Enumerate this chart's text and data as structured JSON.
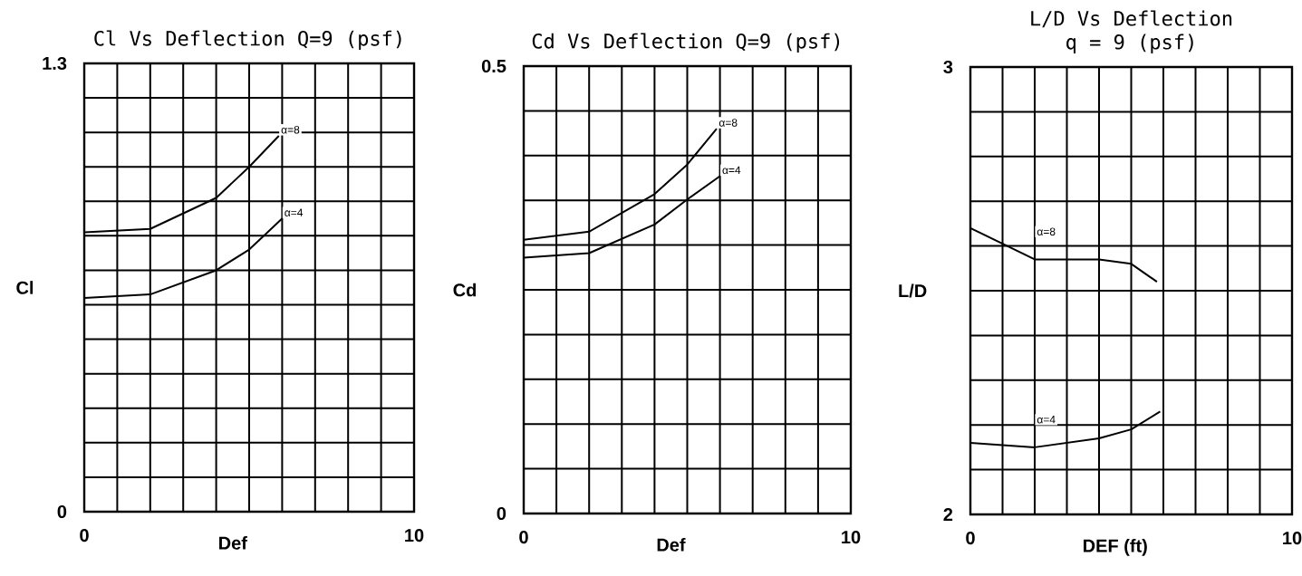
{
  "chart_data": [
    {
      "type": "line",
      "title": "Cl Vs Deflection Q=9 (psf)",
      "xlabel": "Def",
      "ylabel": "Cl",
      "x": [
        0,
        2,
        4,
        5,
        5.9
      ],
      "series": [
        {
          "name": "α=8",
          "color": "#000000",
          "values": [
            0.81,
            0.82,
            0.91,
            1.0,
            1.09
          ]
        },
        {
          "name": "α=4",
          "color": "#000000",
          "values": [
            0.62,
            0.63,
            0.7,
            0.76,
            0.85
          ],
          "x": [
            0,
            2,
            4,
            5,
            6
          ]
        }
      ],
      "xlim": [
        0,
        10
      ],
      "ylim": [
        0,
        1.3
      ],
      "xticks": [
        0,
        {
          "value": 1,
          "label": null
        },
        {
          "value": 2,
          "label": null
        },
        {
          "value": 3,
          "label": null
        },
        {
          "value": 4,
          "label": null
        },
        {
          "value": 5,
          "label": null
        },
        {
          "value": 6,
          "label": null
        },
        {
          "value": 7,
          "label": null
        },
        {
          "value": 8,
          "label": null
        },
        {
          "value": 9,
          "label": null
        },
        10
      ],
      "yticks": [
        0,
        {
          "value": 0.1,
          "label": null
        },
        {
          "value": 0.2,
          "label": null
        },
        {
          "value": 0.3,
          "label": null
        },
        {
          "value": 0.4,
          "label": null
        },
        {
          "value": 0.5,
          "label": null
        },
        {
          "value": 0.6,
          "label": null
        },
        {
          "value": 0.7,
          "label": null
        },
        {
          "value": 0.8,
          "label": null
        },
        {
          "value": 0.9,
          "label": null
        },
        {
          "value": 1.0,
          "label": null
        },
        {
          "value": 1.1,
          "label": null
        },
        {
          "value": 1.2,
          "label": null
        },
        1.3
      ],
      "grid": true,
      "marker": "none",
      "line_style": "solid",
      "legend": false
    },
    {
      "type": "line",
      "title": "Cd Vs Deflection Q=9 (psf)",
      "xlabel": "Def",
      "ylabel": "Cd",
      "x": [
        0,
        2,
        4,
        5,
        5.9
      ],
      "series": [
        {
          "name": "α=8",
          "color": "#000000",
          "values": [
            0.306,
            0.315,
            0.357,
            0.39,
            0.43
          ]
        },
        {
          "name": "α=4",
          "color": "#000000",
          "values": [
            0.286,
            0.291,
            0.323,
            0.351,
            0.377
          ],
          "x": [
            0,
            2,
            4,
            5,
            6
          ]
        }
      ],
      "xlim": [
        0,
        10
      ],
      "ylim": [
        0,
        0.5
      ],
      "xticks": [
        0,
        {
          "value": 1,
          "label": null
        },
        {
          "value": 2,
          "label": null
        },
        {
          "value": 3,
          "label": null
        },
        {
          "value": 4,
          "label": null
        },
        {
          "value": 5,
          "label": null
        },
        {
          "value": 6,
          "label": null
        },
        {
          "value": 7,
          "label": null
        },
        {
          "value": 8,
          "label": null
        },
        {
          "value": 9,
          "label": null
        },
        10
      ],
      "yticks": [
        0,
        {
          "value": 0.05,
          "label": null
        },
        {
          "value": 0.1,
          "label": null
        },
        {
          "value": 0.15,
          "label": null
        },
        {
          "value": 0.2,
          "label": null
        },
        {
          "value": 0.25,
          "label": null
        },
        {
          "value": 0.3,
          "label": null
        },
        {
          "value": 0.35,
          "label": null
        },
        {
          "value": 0.4,
          "label": null
        },
        {
          "value": 0.45,
          "label": null
        },
        0.5
      ],
      "grid": true,
      "marker": "none",
      "line_style": "solid",
      "legend": false
    },
    {
      "type": "line",
      "title": "L/D Vs Deflection",
      "subtitle": "q = 9 (psf)",
      "xlabel": "DEF (ft)",
      "ylabel": "L/D",
      "x": [
        0,
        2,
        4,
        5,
        5.8
      ],
      "series": [
        {
          "name": "α=8",
          "color": "#000000",
          "values": [
            2.64,
            2.57,
            2.57,
            2.56,
            2.52
          ]
        },
        {
          "name": "α=4",
          "color": "#000000",
          "values": [
            2.16,
            2.15,
            2.17,
            2.19,
            2.23
          ],
          "x": [
            0,
            2,
            4,
            5,
            5.9
          ]
        }
      ],
      "xlim": [
        0,
        10
      ],
      "ylim": [
        2,
        3
      ],
      "xticks": [
        0,
        {
          "value": 1,
          "label": null
        },
        {
          "value": 2,
          "label": null
        },
        {
          "value": 3,
          "label": null
        },
        {
          "value": 4,
          "label": null
        },
        {
          "value": 5,
          "label": null
        },
        {
          "value": 6,
          "label": null
        },
        {
          "value": 7,
          "label": null
        },
        {
          "value": 8,
          "label": null
        },
        {
          "value": 9,
          "label": null
        },
        10
      ],
      "yticks": [
        2,
        {
          "value": 2.1,
          "label": null
        },
        {
          "value": 2.2,
          "label": null
        },
        {
          "value": 2.3,
          "label": null
        },
        {
          "value": 2.4,
          "label": null
        },
        {
          "value": 2.5,
          "label": null
        },
        {
          "value": 2.6,
          "label": null
        },
        {
          "value": 2.7,
          "label": null
        },
        {
          "value": 2.8,
          "label": null
        },
        {
          "value": 2.9,
          "label": null
        },
        3
      ],
      "grid": true,
      "marker": "none",
      "line_style": "solid",
      "legend": false
    }
  ]
}
